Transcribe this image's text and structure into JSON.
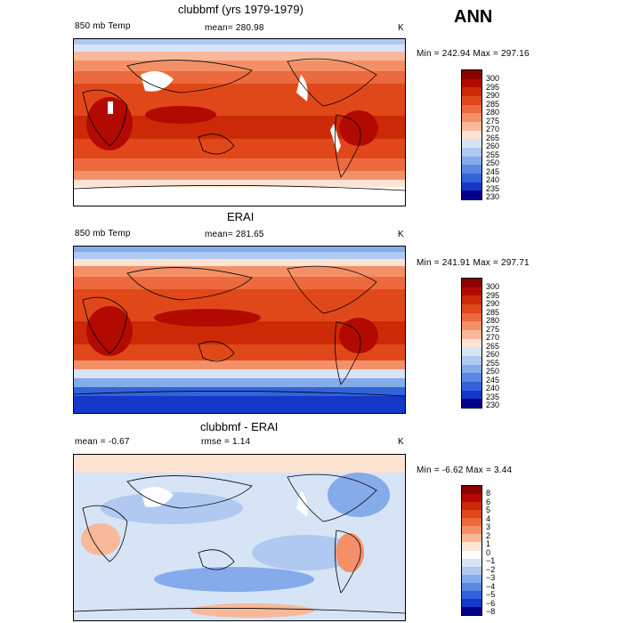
{
  "header": {
    "season": "ANN"
  },
  "panels": [
    {
      "id": "model",
      "title": "clubbmf (yrs 1979-1979)",
      "left_label": "850 mb Temp",
      "center_label": "mean= 280.98",
      "unit": "K",
      "minmax": "Min = 242.94 Max = 297.16",
      "colorbar_labels": [
        "300",
        "295",
        "290",
        "285",
        "280",
        "275",
        "270",
        "265",
        "260",
        "255",
        "250",
        "245",
        "240",
        "235",
        "230"
      ],
      "colorbar_colors": [
        "#8b0000",
        "#b20a00",
        "#cc2a06",
        "#e0481a",
        "#ec6a3e",
        "#f49068",
        "#f8b99a",
        "#fde3d2",
        "#d6e4f6",
        "#b0c9f0",
        "#86abea",
        "#5a88e2",
        "#3263da",
        "#1538c8",
        "#00008b"
      ]
    },
    {
      "id": "obs",
      "title": "ERAI",
      "left_label": "850 mb Temp",
      "center_label": "mean= 281.65",
      "unit": "K",
      "minmax": "Min = 241.91 Max = 297.71",
      "colorbar_labels": [
        "300",
        "295",
        "290",
        "285",
        "280",
        "275",
        "270",
        "265",
        "260",
        "255",
        "250",
        "245",
        "240",
        "235",
        "230"
      ],
      "colorbar_colors": [
        "#8b0000",
        "#b20a00",
        "#cc2a06",
        "#e0481a",
        "#ec6a3e",
        "#f49068",
        "#f8b99a",
        "#fde3d2",
        "#d6e4f6",
        "#b0c9f0",
        "#86abea",
        "#5a88e2",
        "#3263da",
        "#1538c8",
        "#00008b"
      ]
    },
    {
      "id": "diff",
      "title": "clubbmf - ERAI",
      "left_label": "mean =   -0.67",
      "center_label": "rmse =    1.14",
      "unit": "K",
      "minmax": "Min =  -6.62 Max =    3.44",
      "colorbar_labels": [
        "8",
        "6",
        "5",
        "4",
        "3",
        "2",
        "1",
        "0",
        "−1",
        "−2",
        "−3",
        "−4",
        "−5",
        "−6",
        "−8"
      ],
      "colorbar_colors": [
        "#8b0000",
        "#b20a00",
        "#cc2a06",
        "#e0481a",
        "#ec6a3e",
        "#f49068",
        "#f8b99a",
        "#fde3d2",
        "#ffffff",
        "#d6e4f6",
        "#b0c9f0",
        "#86abea",
        "#5a88e2",
        "#3263da",
        "#1538c8",
        "#00008b"
      ]
    }
  ],
  "chart_data": [
    {
      "type": "heatmap",
      "title": "clubbmf (yrs 1979-1979)",
      "variable": "850 mb Temp",
      "unit": "K",
      "mean": 280.98,
      "min": 242.94,
      "max": 297.16,
      "levels": [
        230,
        235,
        240,
        245,
        250,
        255,
        260,
        265,
        270,
        275,
        280,
        285,
        290,
        295,
        300
      ]
    },
    {
      "type": "heatmap",
      "title": "ERAI",
      "variable": "850 mb Temp",
      "unit": "K",
      "mean": 281.65,
      "min": 241.91,
      "max": 297.71,
      "levels": [
        230,
        235,
        240,
        245,
        250,
        255,
        260,
        265,
        270,
        275,
        280,
        285,
        290,
        295,
        300
      ]
    },
    {
      "type": "heatmap",
      "title": "clubbmf - ERAI",
      "unit": "K",
      "mean": -0.67,
      "rmse": 1.14,
      "min": -6.62,
      "max": 3.44,
      "levels": [
        -8,
        -6,
        -5,
        -4,
        -3,
        -2,
        -1,
        0,
        1,
        2,
        3,
        4,
        5,
        6,
        8
      ]
    }
  ]
}
